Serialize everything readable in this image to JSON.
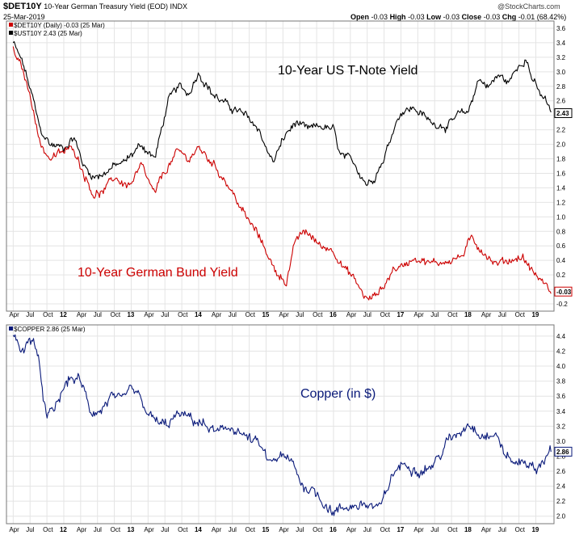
{
  "header": {
    "symbol": "$DET10Y",
    "description": "10-Year German Treasury Yield (EOD)  INDX",
    "date": "25-Mar-2019",
    "open_label": "Open",
    "open": "-0.03",
    "high_label": "High",
    "high": "-0.03",
    "low_label": "Low",
    "low": "-0.03",
    "close_label": "Close",
    "close": "-0.03",
    "chg_label": "Chg",
    "chg": "-0.01 (68.42%)",
    "credit": "@StockCharts.com"
  },
  "colors": {
    "red": "#cc0000",
    "black": "#000000",
    "navy": "#0a1a7a",
    "grid": "#e4e4e4"
  },
  "chart_data": [
    {
      "type": "line",
      "legend": [
        "$DET10Y (Daily) -0.03 (25 Mar)",
        "$UST10Y 2.43 (25 Mar)"
      ],
      "annotations": [
        "10-Year US T-Note Yield",
        "10-Year German Bund Yield"
      ],
      "y_ticks": [
        "-0.2",
        "0.0",
        "0.2",
        "0.4",
        "0.6",
        "0.8",
        "1.0",
        "1.2",
        "1.4",
        "1.6",
        "1.8",
        "2.0",
        "2.2",
        "2.4",
        "2.6",
        "2.8",
        "3.0",
        "3.2",
        "3.4",
        "3.6"
      ],
      "ylim": [
        -0.3,
        3.7
      ],
      "grid": true,
      "series": [
        {
          "name": "$UST10Y",
          "color": "#000000",
          "last_label": "2.43",
          "x": [
            2011.25,
            2011.4,
            2011.55,
            2011.65,
            2011.8,
            2012.0,
            2012.15,
            2012.3,
            2012.45,
            2012.6,
            2012.75,
            2012.9,
            2013.0,
            2013.15,
            2013.35,
            2013.45,
            2013.55,
            2013.7,
            2013.85,
            2014.0,
            2014.2,
            2014.4,
            2014.6,
            2014.75,
            2014.9,
            2015.0,
            2015.1,
            2015.3,
            2015.45,
            2015.6,
            2015.8,
            2016.0,
            2016.1,
            2016.3,
            2016.5,
            2016.6,
            2016.75,
            2016.9,
            2017.0,
            2017.2,
            2017.45,
            2017.7,
            2017.85,
            2018.0,
            2018.15,
            2018.3,
            2018.45,
            2018.6,
            2018.75,
            2018.85,
            2018.95,
            2019.05,
            2019.15,
            2019.23
          ],
          "values": [
            3.4,
            3.1,
            2.6,
            2.2,
            2.0,
            1.95,
            2.1,
            1.7,
            1.55,
            1.6,
            1.7,
            1.75,
            1.85,
            2.0,
            1.8,
            2.2,
            2.6,
            2.8,
            2.7,
            3.0,
            2.7,
            2.55,
            2.45,
            2.35,
            2.2,
            1.95,
            1.75,
            2.15,
            2.3,
            2.2,
            2.25,
            2.2,
            1.85,
            1.75,
            1.45,
            1.55,
            1.8,
            2.25,
            2.45,
            2.5,
            2.3,
            2.25,
            2.4,
            2.45,
            2.9,
            2.8,
            2.95,
            2.85,
            3.1,
            3.2,
            2.9,
            2.7,
            2.6,
            2.43
          ]
        },
        {
          "name": "$DET10Y",
          "color": "#cc0000",
          "last_label": "-0.03",
          "x": [
            2011.25,
            2011.4,
            2011.55,
            2011.65,
            2011.8,
            2012.0,
            2012.15,
            2012.3,
            2012.45,
            2012.6,
            2012.75,
            2012.9,
            2013.0,
            2013.15,
            2013.35,
            2013.45,
            2013.55,
            2013.7,
            2013.85,
            2014.0,
            2014.2,
            2014.4,
            2014.55,
            2014.7,
            2014.85,
            2015.0,
            2015.1,
            2015.2,
            2015.3,
            2015.45,
            2015.6,
            2015.8,
            2016.0,
            2016.15,
            2016.3,
            2016.5,
            2016.6,
            2016.75,
            2016.9,
            2017.0,
            2017.2,
            2017.45,
            2017.7,
            2017.9,
            2018.05,
            2018.2,
            2018.4,
            2018.6,
            2018.8,
            2018.95,
            2019.05,
            2019.15,
            2019.23
          ],
          "values": [
            3.3,
            3.0,
            2.5,
            2.0,
            1.8,
            1.9,
            1.95,
            1.6,
            1.3,
            1.35,
            1.55,
            1.45,
            1.45,
            1.7,
            1.3,
            1.55,
            1.7,
            1.9,
            1.8,
            1.95,
            1.75,
            1.5,
            1.25,
            1.0,
            0.8,
            0.55,
            0.3,
            0.2,
            0.1,
            0.7,
            0.8,
            0.6,
            0.55,
            0.3,
            0.15,
            -0.15,
            -0.1,
            0.05,
            0.3,
            0.3,
            0.45,
            0.35,
            0.4,
            0.45,
            0.7,
            0.55,
            0.35,
            0.4,
            0.45,
            0.25,
            0.15,
            0.05,
            -0.03
          ]
        }
      ]
    },
    {
      "type": "line",
      "legend": [
        "$COPPER 2.86 (25 Mar)"
      ],
      "annotations": [
        "Copper (in $)"
      ],
      "y_ticks": [
        "2.0",
        "2.2",
        "2.4",
        "2.6",
        "2.8",
        "3.0",
        "3.2",
        "3.4",
        "3.6",
        "3.8",
        "4.0",
        "4.2",
        "4.4"
      ],
      "ylim": [
        1.9,
        4.55
      ],
      "grid": true,
      "series": [
        {
          "name": "$COPPER",
          "color": "#0a1a7a",
          "last_label": "2.86",
          "x": [
            2011.25,
            2011.4,
            2011.55,
            2011.65,
            2011.75,
            2011.85,
            2012.0,
            2012.1,
            2012.25,
            2012.4,
            2012.55,
            2012.7,
            2012.85,
            2013.0,
            2013.1,
            2013.3,
            2013.5,
            2013.7,
            2013.9,
            2014.1,
            2014.3,
            2014.5,
            2014.7,
            2014.9,
            2015.05,
            2015.2,
            2015.4,
            2015.55,
            2015.7,
            2015.85,
            2016.0,
            2016.15,
            2016.3,
            2016.5,
            2016.7,
            2016.85,
            2016.95,
            2017.1,
            2017.3,
            2017.5,
            2017.7,
            2017.85,
            2018.0,
            2018.2,
            2018.45,
            2018.55,
            2018.7,
            2018.85,
            2019.0,
            2019.1,
            2019.23
          ],
          "values": [
            4.4,
            4.2,
            4.4,
            3.9,
            3.3,
            3.4,
            3.7,
            3.85,
            3.8,
            3.4,
            3.4,
            3.6,
            3.5,
            3.7,
            3.6,
            3.3,
            3.2,
            3.35,
            3.3,
            3.2,
            3.1,
            3.2,
            3.05,
            2.95,
            2.7,
            2.8,
            2.7,
            2.4,
            2.35,
            2.2,
            2.05,
            2.1,
            2.15,
            2.15,
            2.1,
            2.5,
            2.65,
            2.7,
            2.6,
            2.7,
            3.0,
            3.1,
            3.25,
            3.1,
            3.05,
            2.8,
            2.7,
            2.75,
            2.6,
            2.75,
            2.86
          ]
        }
      ]
    }
  ],
  "x_axis": {
    "labels": [
      {
        "t": 2011.25,
        "label": "Apr"
      },
      {
        "t": 2011.5,
        "label": "Jul"
      },
      {
        "t": 2011.75,
        "label": "Oct"
      },
      {
        "t": 2012.0,
        "label": "12",
        "bold": true
      },
      {
        "t": 2012.25,
        "label": "Apr"
      },
      {
        "t": 2012.5,
        "label": "Jul"
      },
      {
        "t": 2012.75,
        "label": "Oct"
      },
      {
        "t": 2013.0,
        "label": "13",
        "bold": true
      },
      {
        "t": 2013.25,
        "label": "Apr"
      },
      {
        "t": 2013.5,
        "label": "Jul"
      },
      {
        "t": 2013.75,
        "label": "Oct"
      },
      {
        "t": 2014.0,
        "label": "14",
        "bold": true
      },
      {
        "t": 2014.25,
        "label": "Apr"
      },
      {
        "t": 2014.5,
        "label": "Jul"
      },
      {
        "t": 2014.75,
        "label": "Oct"
      },
      {
        "t": 2015.0,
        "label": "15",
        "bold": true
      },
      {
        "t": 2015.25,
        "label": "Apr"
      },
      {
        "t": 2015.5,
        "label": "Jul"
      },
      {
        "t": 2015.75,
        "label": "Oct"
      },
      {
        "t": 2016.0,
        "label": "16",
        "bold": true
      },
      {
        "t": 2016.25,
        "label": "Apr"
      },
      {
        "t": 2016.5,
        "label": "Jul"
      },
      {
        "t": 2016.75,
        "label": "Oct"
      },
      {
        "t": 2017.0,
        "label": "17",
        "bold": true
      },
      {
        "t": 2017.25,
        "label": "Apr"
      },
      {
        "t": 2017.5,
        "label": "Jul"
      },
      {
        "t": 2017.75,
        "label": "Oct"
      },
      {
        "t": 2018.0,
        "label": "18",
        "bold": true
      },
      {
        "t": 2018.25,
        "label": "Apr"
      },
      {
        "t": 2018.5,
        "label": "Jul"
      },
      {
        "t": 2018.75,
        "label": "Oct"
      },
      {
        "t": 2019.0,
        "label": "19",
        "bold": true
      }
    ]
  }
}
